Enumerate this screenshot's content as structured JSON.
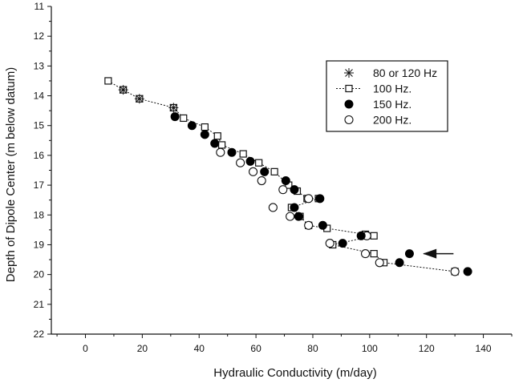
{
  "chart_data": {
    "type": "scatter",
    "title": "",
    "xlabel": "Hydraulic Conductivity (m/day)",
    "ylabel": "Depth of Dipole Center (m below datum)",
    "xlim": [
      -12,
      150
    ],
    "ylim": [
      22,
      11
    ],
    "y_inverted": true,
    "xticks": [
      0,
      20,
      40,
      60,
      80,
      100,
      120,
      140
    ],
    "yticks": [
      11,
      12,
      13,
      14,
      15,
      16,
      17,
      18,
      19,
      20,
      21,
      22
    ],
    "grid": false,
    "legend_position": "upper-right",
    "series": [
      {
        "name": "80 or 120 Hz",
        "marker": "asterisk",
        "line": false,
        "points": [
          [
            13.3,
            13.8
          ],
          [
            19.0,
            14.1
          ],
          [
            31.0,
            14.4
          ]
        ]
      },
      {
        "name": "100 Hz.",
        "marker": "open-square",
        "line": true,
        "points": [
          [
            8.0,
            13.5
          ],
          [
            13.3,
            13.8
          ],
          [
            19.0,
            14.1
          ],
          [
            31.0,
            14.4
          ],
          [
            34.5,
            14.75
          ],
          [
            42.0,
            15.05
          ],
          [
            46.5,
            15.35
          ],
          [
            48.0,
            15.65
          ],
          [
            55.5,
            15.95
          ],
          [
            61.0,
            16.25
          ],
          [
            66.5,
            16.55
          ],
          [
            71.5,
            17.0
          ],
          [
            74.5,
            17.2
          ],
          [
            78.0,
            17.45
          ],
          [
            82.0,
            17.45
          ],
          [
            72.5,
            17.75
          ],
          [
            75.5,
            18.05
          ],
          [
            78.5,
            18.35
          ],
          [
            85.0,
            18.45
          ],
          [
            98.5,
            18.65
          ],
          [
            101.5,
            18.7
          ],
          [
            87.0,
            19.0
          ],
          [
            101.5,
            19.3
          ],
          [
            105.0,
            19.6
          ],
          [
            130.0,
            19.9
          ]
        ]
      },
      {
        "name": "150 Hz.",
        "marker": "filled-circle",
        "line": false,
        "points": [
          [
            31.5,
            14.7
          ],
          [
            37.5,
            15.0
          ],
          [
            42.0,
            15.3
          ],
          [
            45.5,
            15.6
          ],
          [
            51.5,
            15.9
          ],
          [
            58.0,
            16.2
          ],
          [
            63.0,
            16.55
          ],
          [
            70.5,
            16.85
          ],
          [
            73.5,
            17.15
          ],
          [
            82.5,
            17.45
          ],
          [
            73.5,
            17.75
          ],
          [
            75.0,
            18.05
          ],
          [
            83.5,
            18.35
          ],
          [
            97.0,
            18.7
          ],
          [
            90.5,
            18.95
          ],
          [
            114.0,
            19.3
          ],
          [
            110.5,
            19.6
          ],
          [
            134.5,
            19.9
          ]
        ]
      },
      {
        "name": "200 Hz.",
        "marker": "open-circle",
        "line": false,
        "points": [
          [
            47.5,
            15.9
          ],
          [
            54.5,
            16.25
          ],
          [
            59.0,
            16.55
          ],
          [
            62.0,
            16.85
          ],
          [
            69.5,
            17.15
          ],
          [
            78.5,
            17.45
          ],
          [
            66.0,
            17.75
          ],
          [
            72.0,
            18.05
          ],
          [
            78.5,
            18.35
          ],
          [
            99.0,
            18.7
          ],
          [
            86.0,
            18.95
          ],
          [
            98.5,
            19.3
          ],
          [
            103.5,
            19.6
          ],
          [
            130.0,
            19.9
          ]
        ]
      }
    ],
    "annotations": [
      {
        "type": "arrow",
        "direction": "left",
        "text": "",
        "start": [
          129.5,
          19.3
        ],
        "end": [
          119.0,
          19.3
        ]
      }
    ]
  }
}
